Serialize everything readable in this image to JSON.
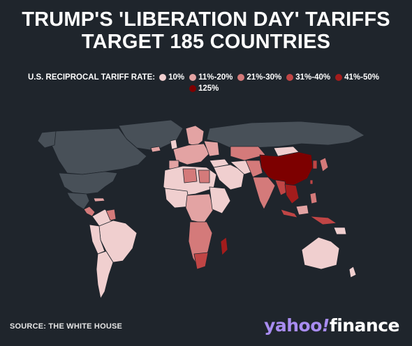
{
  "title": {
    "line1": "TRUMP'S 'LIBERATION DAY' TARIFFS",
    "line2": "TARGET 185 COUNTRIES"
  },
  "legend": {
    "label": "U.S. RECIPROCAL TARIFF RATE:",
    "items": [
      {
        "label": "10%",
        "color": "#f0cfcf"
      },
      {
        "label": "11%-20%",
        "color": "#e3a3a3"
      },
      {
        "label": "21%-30%",
        "color": "#d47a7a"
      },
      {
        "label": "31%-40%",
        "color": "#c04545"
      },
      {
        "label": "41%-50%",
        "color": "#a31c1c"
      },
      {
        "label": "125%",
        "color": "#7d0000"
      }
    ]
  },
  "map_colors": {
    "no_tariff": "#485058",
    "ocean": "#1f252c",
    "border": "#1f252c"
  },
  "footer": {
    "source": "SOURCE: THE WHITE HOUSE",
    "logo_yahoo": "yahoo",
    "logo_bang": "!",
    "logo_finance": "finance"
  }
}
